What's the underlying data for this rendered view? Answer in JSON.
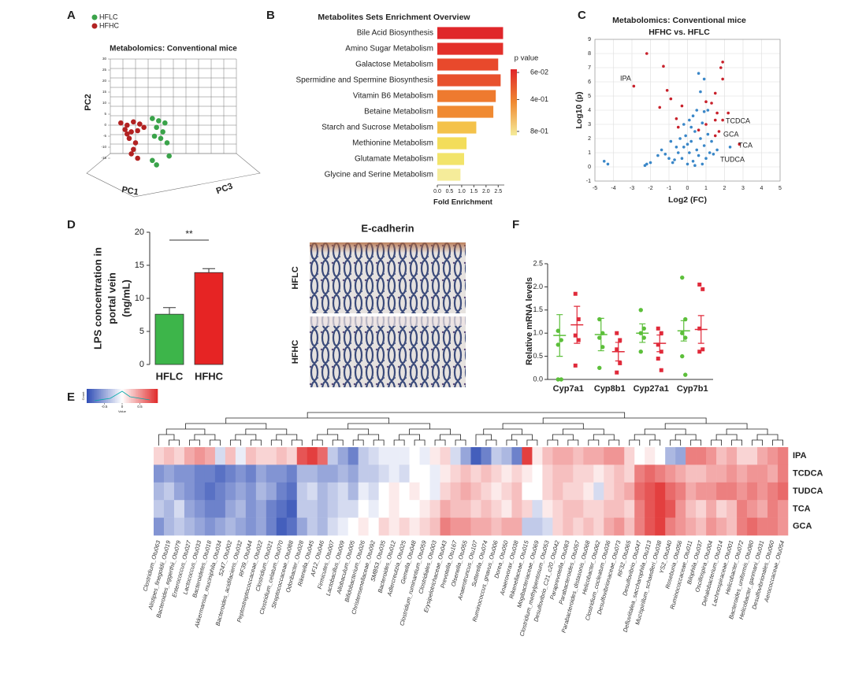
{
  "panel_labels": [
    "A",
    "B",
    "C",
    "D",
    "F",
    "E"
  ],
  "histology": {
    "title": "E-cadherin",
    "labels": [
      "HFLC",
      "HFHC"
    ]
  },
  "chart_data": [
    {
      "type": "scatter3d",
      "title": "Metabolomics: Conventional mice",
      "xlabel": "PC1",
      "ylabel": "PC2",
      "zlabel": "PC3",
      "xlim": [
        -30,
        30
      ],
      "ylim": [
        -20,
        30
      ],
      "yticks": [
        -15,
        -10,
        -5,
        0,
        5,
        10,
        15,
        20,
        25,
        30
      ],
      "series": [
        {
          "name": "HFLC",
          "color": "#3aa34a",
          "x": [
            -10,
            -7,
            -4,
            -8,
            -5,
            -9,
            -6,
            -3,
            -8,
            -10,
            -2
          ],
          "values": [
            3,
            2,
            1,
            -1,
            -3,
            -5,
            -6,
            -8,
            -18,
            -16,
            -14
          ]
        },
        {
          "name": "HFHC",
          "color": "#b22222",
          "x": [
            -25,
            -22,
            -19,
            -16,
            -23,
            -20,
            -17,
            -14,
            -21,
            -18,
            -19,
            -20,
            -17,
            -22
          ],
          "values": [
            1,
            0,
            1.5,
            0.5,
            -2,
            -3,
            -2.5,
            -1,
            -6,
            -8,
            -11,
            -13,
            -15,
            -4
          ]
        }
      ]
    },
    {
      "type": "hbar",
      "title": "Metabolites Sets Enrichment Overview",
      "xlabel": "Fold Enrichment",
      "categories": [
        "Bile Acid Biosynthesis",
        "Amino Sugar Metabolism",
        "Galactose Metabolism",
        "Spermidine and Spermine Biosynthesis",
        "Vitamin B6 Metabolism",
        "Betaine Metabolism",
        "Starch and Sucrose Metabolism",
        "Methionine Metabolism",
        "Glutamate Metabolism",
        "Glycine and Serine Metabolism"
      ],
      "values": [
        2.7,
        2.7,
        2.5,
        2.6,
        2.4,
        2.3,
        1.6,
        1.2,
        1.1,
        0.95
      ],
      "colors": [
        "#e0262a",
        "#e3302a",
        "#e8492c",
        "#e8512d",
        "#ee7a2f",
        "#f08a32",
        "#f4c24a",
        "#f3dd5a",
        "#f2e46a",
        "#f5ec9a"
      ],
      "xlim": [
        0,
        2.75
      ],
      "xticks": [
        {
          "value": 0,
          "label": "0.0"
        },
        0.5,
        {
          "value": 1,
          "label": "1.0"
        },
        1.5,
        {
          "value": 2,
          "label": "2.0"
        },
        2.5
      ],
      "colorbar": {
        "title": "p value",
        "clim": [
          0.02,
          0.85
        ],
        "colors": [
          "#e0262a",
          "#f08a32",
          "#f5ec9a"
        ],
        "ticks": [
          {
            "value": 0.06,
            "label": "6e-02"
          },
          {
            "value": 0.4,
            "label": "4e-01"
          },
          {
            "value": 0.8,
            "label": "8e-01"
          }
        ]
      }
    },
    {
      "type": "scatter",
      "title": "Metabolomics: Conventional mice",
      "subtitle": "HFHC vs. HFLC",
      "xlabel": "Log2 (FC)",
      "ylabel": "Log10 (p)",
      "xlim": [
        -5,
        5
      ],
      "ylim": [
        -1,
        9
      ],
      "xticks": [
        -5,
        -4,
        -3,
        -2,
        -1,
        0,
        1,
        2,
        3,
        4,
        5
      ],
      "yticks": [
        -1,
        0,
        1,
        2,
        3,
        4,
        5,
        6,
        7,
        8,
        9
      ],
      "grid": true,
      "annotations": [
        "IPA",
        "TCDCA",
        "GCA",
        "TCA",
        "TUDCA"
      ],
      "series": [
        {
          "color": "#3a87c8",
          "x": [
            -4.5,
            -4.3,
            -2.3,
            -2.0,
            -2.2,
            -1.4,
            -1.2,
            -0.9,
            -0.7,
            -0.5,
            -0.3,
            -0.2,
            0,
            0.1,
            0.2,
            0.3,
            0.4,
            0.5,
            0.6,
            0.7,
            0.8,
            0.9,
            1.0,
            1.1,
            1.2,
            0.3,
            0.5,
            0.7,
            0.9,
            0.6,
            -0.1,
            -0.4,
            0.0,
            0.2,
            -0.6,
            1.3,
            1.4,
            1.6,
            -0.8,
            0.4,
            0.8,
            -1.0,
            2.3,
            1.1,
            -0.2,
            0.1,
            0.9,
            -1.6
          ],
          "values": [
            0.4,
            0.2,
            0.1,
            0.3,
            0.2,
            1.2,
            0.9,
            1.8,
            0.5,
            1.0,
            0.6,
            1.4,
            0.2,
            1.0,
            1.8,
            0.4,
            2.5,
            1.2,
            0.8,
            2.0,
            3.1,
            1.5,
            0.6,
            2.3,
            1.0,
            3.6,
            4.0,
            5.3,
            6.2,
            6.6,
            2.2,
            2.0,
            1.6,
            2.8,
            1.4,
            1.8,
            0.9,
            1.2,
            0.3,
            0.1,
            0.2,
            0.6,
            1.4,
            4.0,
            3.0,
            3.3,
            3.9,
            0.8
          ]
        },
        {
          "color": "#c8202a",
          "x": [
            -2.2,
            -1.3,
            -2.9,
            -1.1,
            -0.9,
            -1.5,
            -0.6,
            -0.5,
            1.9,
            1.8,
            1.9,
            1.5,
            1.3,
            1.0,
            1.6,
            1.5,
            1.9,
            1.7,
            1.5,
            2.8,
            1.0,
            -0.3,
            0.6,
            2.2
          ],
          "values": [
            8,
            7.1,
            5.7,
            5.4,
            4.8,
            4.2,
            3.4,
            2.8,
            7.4,
            7.0,
            6.2,
            5.2,
            4.5,
            4.6,
            3.8,
            3.3,
            3.3,
            2.5,
            2.2,
            1.6,
            3.0,
            4.3,
            2.6,
            3.8
          ]
        }
      ]
    },
    {
      "type": "bar",
      "ylabel": [
        "LPS concentration in",
        "portal vein",
        "(ng/mL)"
      ],
      "categories": [
        "HFLC",
        "HFHC"
      ],
      "values": [
        7.6,
        13.9
      ],
      "errors": [
        1.0,
        0.6
      ],
      "colors": [
        "#3db54a",
        "#e62424"
      ],
      "ylim": [
        0,
        20
      ],
      "yticks": [
        0,
        5,
        10,
        15,
        20
      ],
      "annotation": "**"
    },
    {
      "type": "dot",
      "ylabel": "Relative mRNA levels",
      "categories": [
        "Cyp7a1",
        "Cyp8b1",
        "Cyp27a1",
        "Cyp7b1"
      ],
      "ylim": [
        0,
        2.5
      ],
      "yticks": [
        {
          "value": 0,
          "label": "0.0"
        },
        0.5,
        {
          "value": 1,
          "label": "1.0"
        },
        1.5,
        {
          "value": 2,
          "label": "2.0"
        },
        2.5
      ],
      "series": [
        {
          "color": "#5cbf3a",
          "means": [
            0.95,
            0.97,
            1.0,
            1.05
          ],
          "errors": [
            0.45,
            0.35,
            0.2,
            0.22
          ],
          "points": [
            [
              1.05,
              0.85,
              0.75,
              0.0,
              0.0
            ],
            [
              1.3,
              1.0,
              0.9,
              0.7,
              0.25
            ],
            [
              1.5,
              1.1,
              1.0,
              0.9,
              0.6
            ],
            [
              2.2,
              1.3,
              1.0,
              0.9,
              0.5,
              0.1
            ]
          ]
        },
        {
          "color": "#e02a3a",
          "means": [
            1.18,
            0.6,
            0.78,
            1.08
          ],
          "errors": [
            0.4,
            0.2,
            0.18,
            0.3
          ],
          "points": [
            [
              1.85,
              1.3,
              0.95,
              0.85,
              0.3
            ],
            [
              1.0,
              0.85,
              0.65,
              0.35,
              0.15
            ],
            [
              1.1,
              1.0,
              0.75,
              0.6,
              0.45,
              0.2
            ],
            [
              2.05,
              1.95,
              1.1,
              0.65,
              0.6
            ]
          ]
        }
      ]
    },
    {
      "type": "heatmap",
      "clim": [
        -1,
        1
      ],
      "colorbar": {
        "ylabel": "Count",
        "xlabel": "Value",
        "ticks": [
          -0.5,
          0,
          0.5
        ]
      },
      "rows": [
        "IPA",
        "TCDCA",
        "TUDCA",
        "TCA",
        "GCA"
      ],
      "columns": [
        "Clostridium_Otu063",
        "Alistipes_finegoldii_Otu019",
        "Bacteroides_eggerthii_Otu079",
        "Enterococcus_Otu027",
        "Lactococcus_Otu033",
        "Bacteroidetes_Otu018",
        "Akkermansia_muciniphila_Otu034",
        "S247_Otu002",
        "Bacteroides_acidifaciens_Otu032",
        "RF39_Otu044",
        "Peptostreptococcaceae_Otu022",
        "Clostridium_Otu021",
        "Clostridium_celatum_Otu070",
        "Streptococcaceae_Otu088",
        "Odoribacter_Otu028",
        "Rikenella_Otu045",
        "AF12_Otu046",
        "Firmicutes_Otu007",
        "Lactobacillus_Otu009",
        "Allobaculum_Otu005",
        "Bifidobacterium_Otu026",
        "Christensenellaceae_Otu092",
        "SMB53_Otu035",
        "Bacteroides_Otu012",
        "Adlercreutzia_Otu025",
        "Gemella_Otu048",
        "Clostridium_ruminantium_Otu059",
        "Clostridiales_Otu003",
        "Erysipelotrichaceae_Otu043",
        "Prevotella_Otu167",
        "Olsenella_Otu055",
        "Anaerotruncus_Otu107",
        "Sutterella_Otu074",
        "Ruminococcus_gnavus_Otu006",
        "Dorea_Otu050",
        "Anaerovorax_Otu038",
        "Rikenellaceae_Otu015",
        "Mogibacteriaceae_Otu069",
        "Clostridium_methylpentosum_Otu053",
        "Desulfovibrio_C21_c20_Otu042",
        "Paraprevotella_Otu083",
        "Parabacteroides_Otu057",
        "Parabacteroides_distasonis_Otu068",
        "Helicobacter_Otu062",
        "Clostridium_cocleatum_Otu036",
        "Desulfovibrionaceae_Otu073",
        "RF32_Otu065",
        "Desulfovibrio_Otu047",
        "Defluviitalea_saccharophila_Otu313",
        "Mucispirillum_schaedleri_Otu038",
        "YS2_Otu040",
        "Roseburia_Otu056",
        "Ruminococcaceae_Otu011",
        "Bilophila_Otu037",
        "Oscillospira_Otu004",
        "Dehalobacterium_Otu014",
        "Lachnospiraceae_Otu001",
        "Helicobacter_Otu072",
        "Bacteroides_uniformis_Otu080",
        "Helicobacter_ganmani_Otu031",
        "Desulfovibrionales_Otu060",
        "Aerococcaceae_Otu054"
      ],
      "values": [
        [
          0.2,
          0.3,
          0.2,
          0.4,
          0.5,
          0.4,
          -0.2,
          0.3,
          -0.1,
          0.3,
          0.2,
          0.2,
          0.3,
          0.2,
          0.8,
          0.9,
          0.7,
          -0.3,
          -0.5,
          -0.7,
          -0.3,
          -0.2,
          -0.1,
          -0.1,
          -0.1,
          0,
          -0.1,
          0.1,
          0.2,
          -0.2,
          -0.5,
          -0.9,
          -0.7,
          -0.3,
          -0.4,
          -0.7,
          0.9,
          0.1,
          0.3,
          0.4,
          0.4,
          0.3,
          0.4,
          0.4,
          0.5,
          0.5,
          0.2,
          0,
          0.1,
          0,
          -0.4,
          -0.5,
          0.6,
          0.6,
          0.5,
          0.3,
          0.4,
          0.2,
          0.2,
          0.4,
          0.5,
          0.6
        ],
        [
          -0.6,
          -0.5,
          -0.6,
          -0.6,
          -0.7,
          -0.7,
          -0.8,
          -0.7,
          -0.6,
          -0.7,
          -0.5,
          -0.6,
          -0.6,
          -0.7,
          -0.4,
          -0.4,
          -0.5,
          -0.5,
          -0.4,
          -0.5,
          -0.3,
          -0.3,
          -0.2,
          -0.1,
          -0.2,
          0,
          0,
          -0.1,
          0.1,
          0.2,
          0.3,
          0.2,
          0.3,
          0.2,
          0.1,
          0.2,
          0.1,
          0,
          0.2,
          0.3,
          0.3,
          0.2,
          0.2,
          0.1,
          0.2,
          0.3,
          0.2,
          0.6,
          0.7,
          0.6,
          0.5,
          0.4,
          0.3,
          0.3,
          0.4,
          0.4,
          0.5,
          0.4,
          0.5,
          0.5,
          0.4,
          0.6
        ],
        [
          -0.4,
          -0.3,
          -0.5,
          -0.6,
          -0.7,
          -0.8,
          -0.7,
          -0.6,
          -0.5,
          -0.6,
          -0.4,
          -0.5,
          -0.7,
          -0.8,
          -0.3,
          -0.2,
          -0.4,
          -0.3,
          -0.2,
          -0.4,
          -0.1,
          -0.2,
          0,
          0.1,
          0,
          0.1,
          0,
          -0.1,
          0.2,
          0.3,
          0.4,
          0.3,
          0.2,
          0.1,
          0.2,
          0.3,
          0,
          0,
          0.2,
          0.3,
          0.2,
          0.2,
          0.1,
          -0.2,
          0.2,
          0.3,
          0.4,
          0.7,
          0.8,
          0.9,
          0.7,
          0.6,
          0.4,
          0.5,
          0.5,
          0.6,
          0.6,
          0.5,
          0.6,
          0.5,
          0.6,
          0.7
        ],
        [
          -0.3,
          -0.4,
          -0.2,
          -0.5,
          -0.6,
          -0.7,
          -0.7,
          -0.5,
          -0.4,
          -0.6,
          -0.5,
          -0.7,
          -0.8,
          -0.9,
          -0.3,
          -0.3,
          -0.4,
          -0.3,
          -0.2,
          -0.2,
          0,
          -0.1,
          0,
          0.1,
          0,
          0,
          0.1,
          0.2,
          0.4,
          0.3,
          0.3,
          0.2,
          0.3,
          0.2,
          0.1,
          0.3,
          0.2,
          -0.2,
          0.1,
          0.2,
          0.3,
          0.3,
          0.2,
          0.2,
          0.3,
          0.3,
          0.2,
          0.6,
          0.8,
          0.9,
          0.8,
          0.5,
          0.3,
          0.2,
          0.4,
          0.2,
          0.3,
          0.6,
          0.5,
          0.4,
          0.6,
          0.5
        ],
        [
          -0.6,
          -0.4,
          -0.3,
          -0.4,
          -0.5,
          -0.6,
          -0.5,
          -0.4,
          -0.5,
          -0.6,
          -0.5,
          -0.7,
          -0.9,
          -0.8,
          -0.5,
          -0.3,
          -0.4,
          -0.2,
          -0.1,
          0,
          0.1,
          0,
          0.2,
          0.1,
          0.2,
          0.1,
          0.2,
          0.3,
          0.6,
          0.5,
          0.5,
          0.4,
          0.4,
          0.3,
          0.4,
          0.4,
          -0.3,
          -0.3,
          -0.2,
          0.2,
          0.3,
          0.2,
          0.3,
          0.2,
          0.4,
          0.5,
          0.3,
          0.6,
          0.8,
          0.9,
          0.6,
          0.5,
          0.4,
          0.3,
          0.5,
          0.4,
          0.3,
          0.6,
          0.7,
          0.6,
          0.6,
          0.5
        ]
      ]
    }
  ]
}
